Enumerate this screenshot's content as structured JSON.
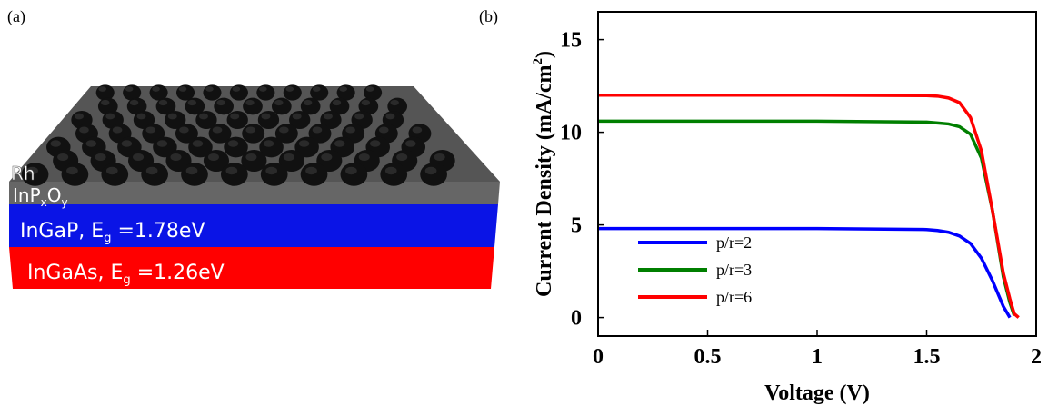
{
  "panel_a": {
    "label": "(a)",
    "layers": [
      [
        "Rh"
      ],
      [
        "InP",
        "x",
        "O",
        "y"
      ],
      [
        "InGaP, E",
        "g",
        " =1.78eV"
      ],
      [
        "InGaAs, E",
        "g",
        " =1.26eV"
      ]
    ]
  },
  "chart_data": {
    "type": "line",
    "label": "(b)",
    "xlabel": "Voltage (V)",
    "ylabel": [
      "Current Density (mA/cm",
      "2",
      ")"
    ],
    "x": [
      0,
      0.5,
      1,
      1.5,
      1.55,
      1.6,
      1.65,
      1.7,
      1.75,
      1.8,
      1.85,
      1.88,
      1.9,
      1.92
    ],
    "series": [
      {
        "name": "p/r=2",
        "color": "#0000ff",
        "values": [
          4.8,
          4.8,
          4.8,
          4.75,
          4.7,
          4.6,
          4.4,
          4.0,
          3.2,
          2.0,
          0.6,
          0,
          null,
          null
        ]
      },
      {
        "name": "p/r=3",
        "color": "#007f00",
        "values": [
          10.6,
          10.6,
          10.6,
          10.55,
          10.5,
          10.45,
          10.3,
          9.9,
          8.6,
          5.8,
          2.2,
          0.8,
          0.1,
          null
        ]
      },
      {
        "name": "p/r=6",
        "color": "#ff0000",
        "values": [
          12,
          12,
          12,
          11.98,
          11.95,
          11.85,
          11.6,
          10.8,
          9.0,
          5.8,
          2.4,
          1.0,
          0.2,
          0
        ]
      }
    ],
    "xlim": [
      0,
      2
    ],
    "xticks": [
      0,
      0.5,
      1,
      1.5,
      2
    ],
    "ylim": [
      -1,
      16.5
    ],
    "yticks": [
      0,
      5,
      10,
      15
    ],
    "legend": "lower-left"
  }
}
